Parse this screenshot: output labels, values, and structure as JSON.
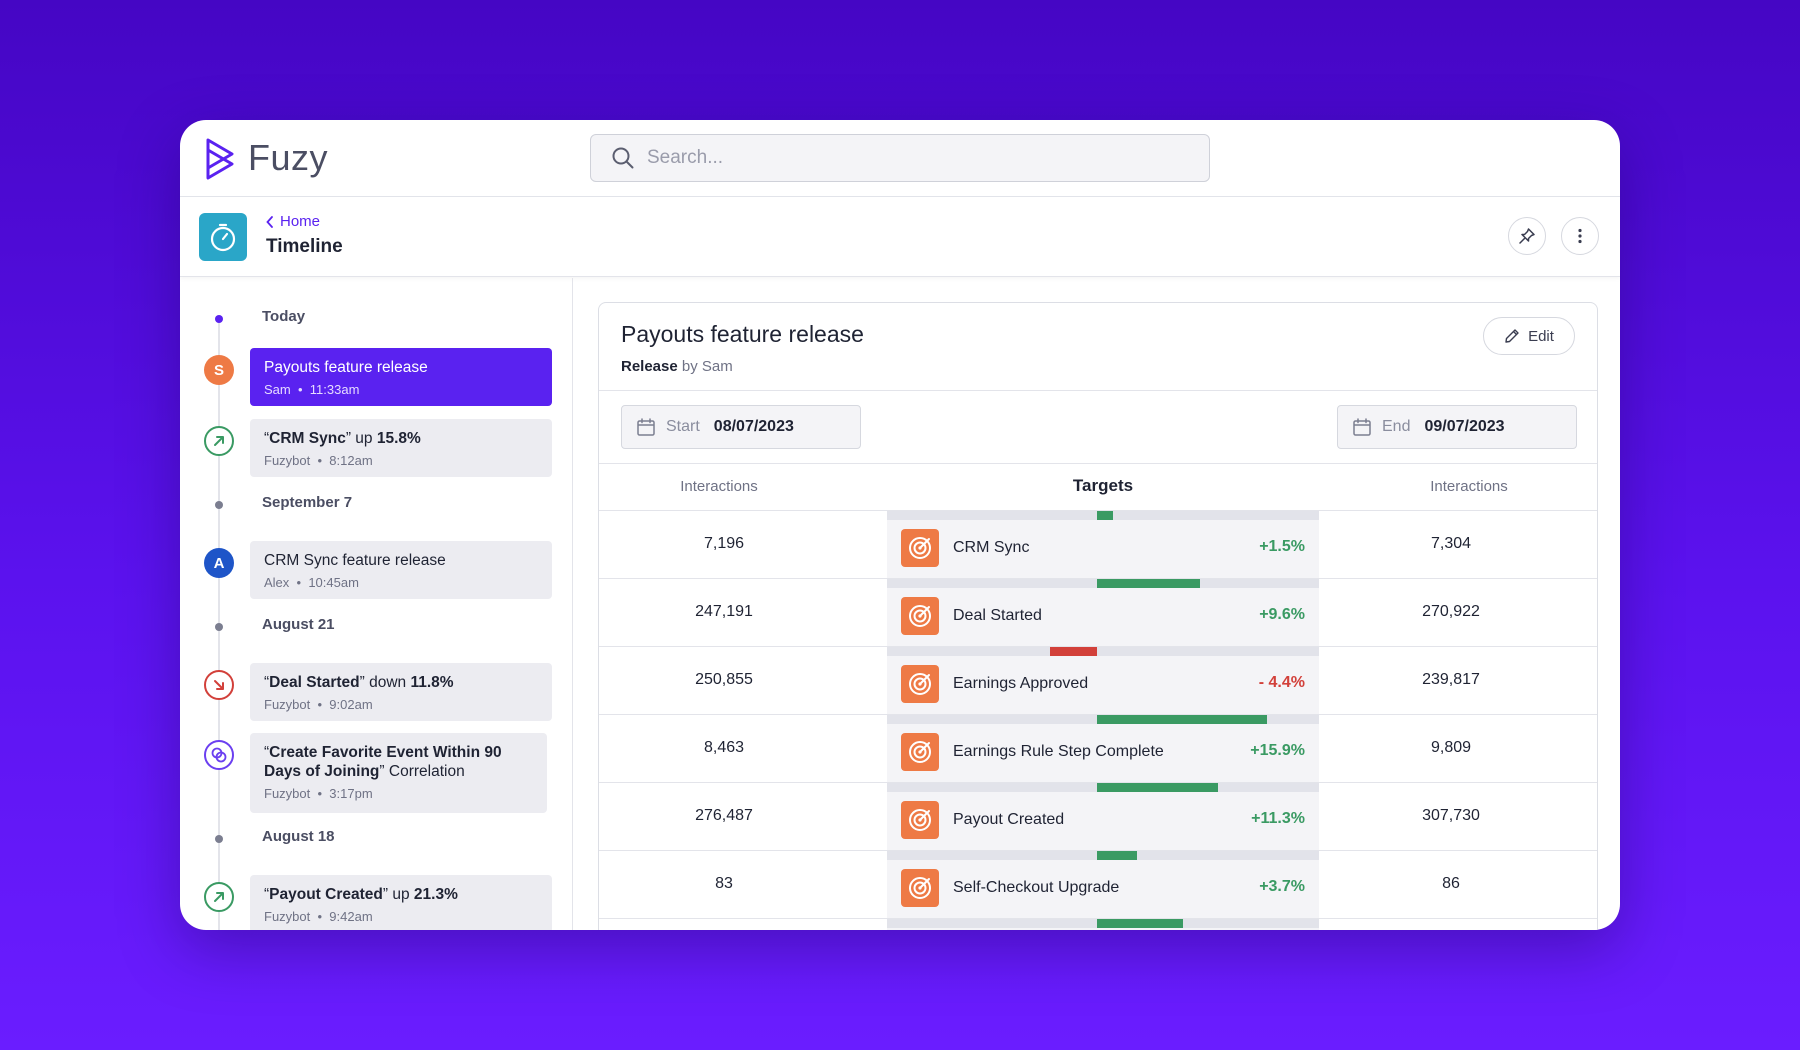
{
  "app": {
    "name": "Fuzy"
  },
  "search": {
    "placeholder": "Search..."
  },
  "header": {
    "breadcrumb": "Home",
    "title": "Timeline"
  },
  "timeline": {
    "dates": [
      "Today",
      "September 7",
      "August 21",
      "August 18"
    ],
    "items": [
      {
        "title": "Payouts feature release",
        "author": "Sam",
        "time": "11:33am",
        "avatar": "S"
      },
      {
        "q1": "“",
        "name": "CRM Sync",
        "q2": "”",
        "verb": " up ",
        "pct": "15.8%",
        "author": "Fuzybot",
        "time": "8:12am"
      },
      {
        "title": "CRM Sync feature release",
        "author": "Alex",
        "time": "10:45am",
        "avatar": "A"
      },
      {
        "q1": "“",
        "name": "Deal Started",
        "q2": "”",
        "verb": " down ",
        "pct": "11.8%",
        "author": "Fuzybot",
        "time": "9:02am"
      },
      {
        "q1": "“",
        "name": "Create Favorite Event Within 90 Days of Joining",
        "q2": "”",
        "suffix": " Correlation",
        "author": "Fuzybot",
        "time": "3:17pm"
      },
      {
        "q1": "“",
        "name": "Payout Created",
        "q2": "”",
        "verb": " up ",
        "pct": "21.3%",
        "author": "Fuzybot",
        "time": "9:42am"
      }
    ],
    "separator": "•"
  },
  "detail": {
    "title": "Payouts feature release",
    "type": "Release",
    "by": "by Sam",
    "edit_label": "Edit",
    "start_label": "Start",
    "start_value": "08/07/2023",
    "end_label": "End",
    "end_value": "09/07/2023",
    "columns": [
      "Interactions",
      "Targets",
      "Interactions"
    ],
    "rows": [
      {
        "before": "7,196",
        "name": "CRM Sync",
        "change": "+1.5%",
        "after": "7,304",
        "change_value": 1.5
      },
      {
        "before": "247,191",
        "name": "Deal Started",
        "change": "+9.6%",
        "after": "270,922",
        "change_value": 9.6
      },
      {
        "before": "250,855",
        "name": "Earnings Approved",
        "change": "- 4.4%",
        "after": "239,817",
        "change_value": -4.4
      },
      {
        "before": "8,463",
        "name": "Earnings Rule Step Complete",
        "change": "+15.9%",
        "after": "9,809",
        "change_value": 15.9
      },
      {
        "before": "276,487",
        "name": "Payout Created",
        "change": "+11.3%",
        "after": "307,730",
        "change_value": 11.3
      },
      {
        "before": "83",
        "name": "Self-Checkout Upgrade",
        "change": "+3.7%",
        "after": "86",
        "change_value": 3.7
      }
    ],
    "next_row_change_value": 8.0
  },
  "colors": {
    "accent": "#5a22f0",
    "positive": "#3a9a63",
    "negative": "#d2403a",
    "target_icon": "#ee7a45",
    "page_icon": "#2aa6c8"
  }
}
